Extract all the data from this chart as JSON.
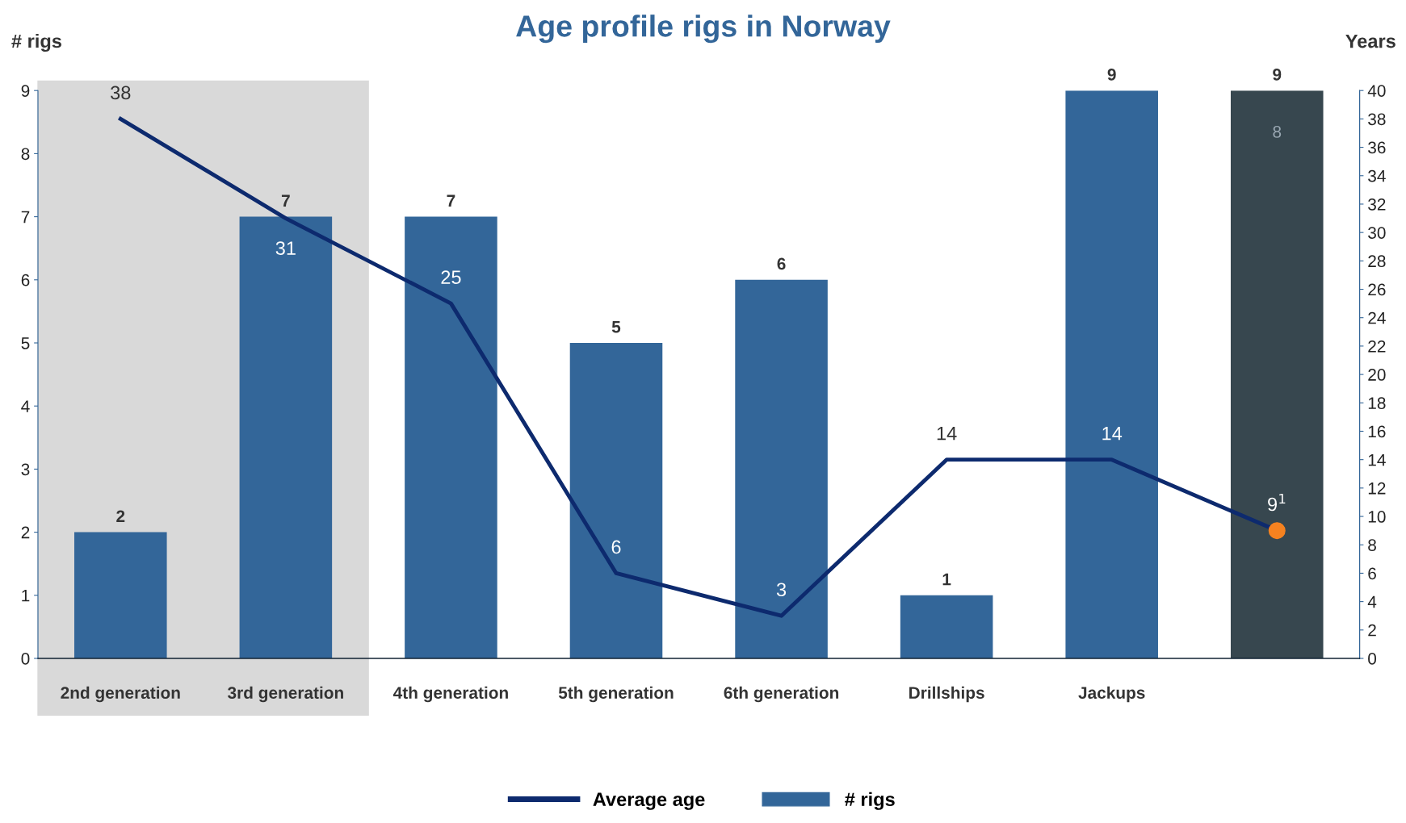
{
  "chart_data": {
    "type": "bar",
    "title": "Age profile rigs in Norway",
    "ylabel": "# rigs",
    "y2label": "Years",
    "categories": [
      "2nd generation",
      "3rd generation",
      "4th generation",
      "5th generation",
      "6th generation",
      "Drillships",
      "Jackups",
      null
    ],
    "series": [
      {
        "name": "# rigs",
        "color": "#336699",
        "colors": [
          "#336699",
          "#336699",
          "#336699",
          "#336699",
          "#336699",
          "#336699",
          "#336699",
          "#37474f"
        ],
        "values": [
          2,
          7,
          7,
          5,
          6,
          1,
          9,
          9
        ],
        "data_labels": true
      },
      {
        "name": "Average age",
        "type": "line",
        "axis": "y2",
        "color": "#0d2a6e",
        "colors": [
          null,
          null,
          null,
          null,
          null,
          null,
          null,
          "#f58220"
        ],
        "values": [
          38,
          31,
          25,
          6,
          3,
          14,
          14,
          9
        ],
        "value_labels": [
          "38",
          "31",
          "25",
          "6",
          "3",
          "14",
          "14",
          "9$^{1}$"
        ]
      }
    ],
    "annotations": [
      "8"
    ],
    "bands": [
      {
        "axis": "x",
        "from": "2nd generation",
        "to": "3rd generation",
        "color": "#d9d9d9"
      }
    ],
    "ylim": [
      0,
      9
    ],
    "yticks": [
      0,
      1,
      2,
      3,
      4,
      5,
      6,
      7,
      8,
      9
    ],
    "y2lim": [
      0,
      40
    ],
    "y2ticks": [
      0,
      2,
      4,
      6,
      8,
      10,
      12,
      14,
      16,
      18,
      20,
      22,
      24,
      26,
      28,
      30,
      32,
      34,
      36,
      38,
      40
    ],
    "grid": false,
    "legend": "bottom"
  }
}
